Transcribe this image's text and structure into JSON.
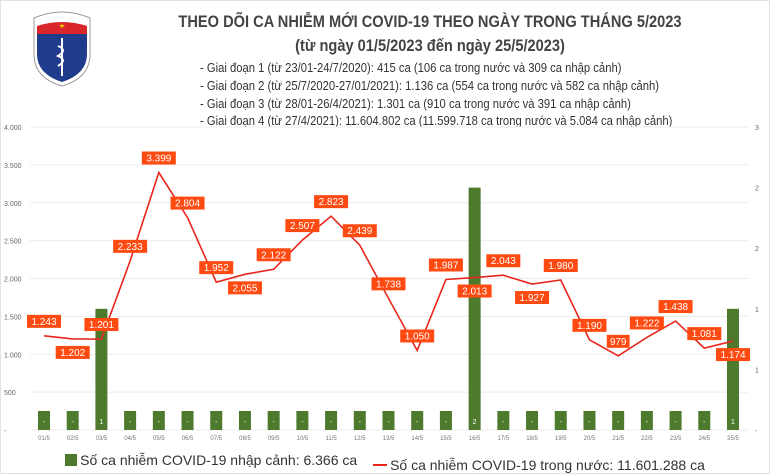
{
  "logo": {
    "text_top": "BỘ Y TẾ",
    "text_bottom": "MINISTRY OF HEALTH"
  },
  "notes": [
    "- Giai đoạn 1 (từ 23/01-24/7/2020): 415 ca (106 ca trong nước và 309 ca nhập cảnh)",
    "- Giai đoạn 2 (từ 25/7/2020-27/01/2021): 1.136 ca (554 ca trong nước và 582 ca nhập cảnh)",
    "- Giai đoạn 3 (từ 28/01-26/4/2021): 1.301 ca (910 ca trong nước và 391 ca nhập cảnh)",
    "- Giai đoạn 4 (từ 27/4/2021): 11.604.802 ca (11.599.718 ca trong nước và 5.084 ca nhập cảnh)"
  ],
  "chart_data": {
    "type": "bar+line",
    "title": "THEO DÕI CA NHIỄM MỚI COVID-19 THEO NGÀY TRONG THÁNG 5/2023",
    "subtitle": "(từ ngày 01/5/2023 đến ngày 25/5/2023)",
    "categories": [
      "01/5",
      "02/5",
      "03/5",
      "04/5",
      "05/5",
      "06/5",
      "07/5",
      "08/5",
      "09/5",
      "10/5",
      "11/5",
      "12/5",
      "13/5",
      "14/5",
      "15/5",
      "16/5",
      "17/5",
      "18/5",
      "19/5",
      "20/5",
      "21/5",
      "22/5",
      "23/5",
      "24/5",
      "25/5"
    ],
    "series": [
      {
        "name": "Số ca nhiễm COVID-19 nhập cảnh: 6.366 ca",
        "type": "bar",
        "axis": "right",
        "color": "#4e7a2e",
        "values": [
          0,
          0,
          1,
          0,
          0,
          0,
          0,
          0,
          0,
          0,
          0,
          0,
          0,
          0,
          0,
          2,
          0,
          0,
          0,
          0,
          0,
          0,
          0,
          0,
          1
        ],
        "labels": [
          "-",
          "-",
          "1",
          "-",
          "-",
          "-",
          "-",
          "-",
          "-",
          "-",
          "-",
          "-",
          "-",
          "-",
          "-",
          "2",
          "-",
          "-",
          "-",
          "-",
          "-",
          "-",
          "-",
          "-",
          "1"
        ]
      },
      {
        "name": "Số ca nhiễm COVID-19 trong nước: 11.601.288 ca",
        "type": "line",
        "axis": "left",
        "color": "#e8261c",
        "label_color": "#ff4a12",
        "values": [
          1243,
          1202,
          1201,
          2233,
          3399,
          2804,
          1952,
          2055,
          2122,
          2507,
          2823,
          2439,
          1738,
          1050,
          1987,
          2013,
          2043,
          1927,
          1980,
          1190,
          979,
          1222,
          1438,
          1081,
          1174
        ],
        "labels": [
          "1.243",
          "1.202",
          "1.201",
          "2.233",
          "3.399",
          "2.804",
          "1.952",
          "2.055",
          "2.122",
          "2.507",
          "2.823",
          "2.439",
          "1.738",
          "1.050",
          "1.987",
          "2.013",
          "2.043",
          "1.927",
          "1.980",
          "1.190",
          "979",
          "1.222",
          "1.438",
          "1.081",
          "1.174"
        ]
      }
    ],
    "y_left": {
      "range": [
        0,
        4000
      ],
      "ticks": [
        "-",
        "500",
        "1.000",
        "1.500",
        "2.000",
        "2.500",
        "3.000",
        "3.500",
        "4.000"
      ]
    },
    "y_right": {
      "range": [
        0,
        2.5
      ],
      "ticks": [
        "-",
        "1",
        "1",
        "2",
        "2",
        "3"
      ]
    },
    "grid": true,
    "legend": "bottom"
  }
}
